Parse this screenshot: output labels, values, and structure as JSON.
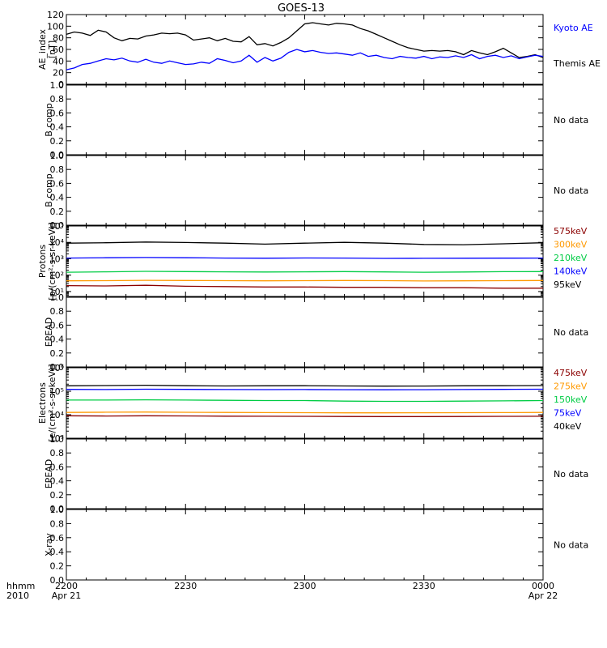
{
  "title": "GOES-13",
  "time_axis": {
    "row_label_1": "hhmm",
    "row_label_2": "2010",
    "ticks": [
      {
        "t": 0,
        "label": "2200",
        "date": "Apr 21"
      },
      {
        "t": 30,
        "label": "2230",
        "date": ""
      },
      {
        "t": 60,
        "label": "2300",
        "date": ""
      },
      {
        "t": 90,
        "label": "2330",
        "date": ""
      },
      {
        "t": 120,
        "label": "0000",
        "date": "Apr 22"
      }
    ]
  },
  "no_data_text": "No data",
  "chart_data": [
    {
      "type": "line",
      "ylabel": [
        "AE_index",
        "[nT]"
      ],
      "ylim": [
        0,
        120
      ],
      "yticks": [
        "0",
        "20",
        "40",
        "60",
        "80",
        "100",
        "120"
      ],
      "legend": [
        {
          "text": "Kyoto AE",
          "color": "#0000ff"
        },
        {
          "text": "Themis AE",
          "color": "#000000"
        }
      ],
      "series": [
        {
          "name": "Themis AE",
          "color": "#000000",
          "x": [
            0,
            2,
            4,
            6,
            8,
            10,
            12,
            14,
            16,
            18,
            20,
            22,
            24,
            26,
            28,
            30,
            32,
            34,
            36,
            38,
            40,
            42,
            44,
            46,
            48,
            50,
            52,
            54,
            56,
            58,
            60,
            62,
            64,
            66,
            68,
            70,
            72,
            74,
            76,
            78,
            80,
            82,
            84,
            86,
            88,
            90,
            92,
            94,
            96,
            98,
            100,
            102,
            104,
            106,
            108,
            110,
            112,
            114,
            116,
            118,
            120
          ],
          "y": [
            86,
            90,
            88,
            84,
            93,
            90,
            80,
            75,
            79,
            78,
            83,
            85,
            88,
            87,
            88,
            85,
            76,
            78,
            80,
            75,
            79,
            74,
            73,
            82,
            68,
            70,
            66,
            72,
            80,
            92,
            104,
            106,
            104,
            102,
            105,
            104,
            102,
            96,
            92,
            86,
            80,
            74,
            68,
            63,
            60,
            57,
            58,
            57,
            58,
            56,
            51,
            58,
            54,
            51,
            56,
            62,
            54,
            46,
            48,
            51,
            46
          ]
        },
        {
          "name": "Kyoto AE",
          "color": "#0000ff",
          "x": [
            0,
            2,
            4,
            6,
            8,
            10,
            12,
            14,
            16,
            18,
            20,
            22,
            24,
            26,
            28,
            30,
            32,
            34,
            36,
            38,
            40,
            42,
            44,
            46,
            48,
            50,
            52,
            54,
            56,
            58,
            60,
            62,
            64,
            66,
            68,
            70,
            72,
            74,
            76,
            78,
            80,
            82,
            84,
            86,
            88,
            90,
            92,
            94,
            96,
            98,
            100,
            102,
            104,
            106,
            108,
            110,
            112,
            114,
            116,
            118,
            120
          ],
          "y": [
            25,
            28,
            34,
            36,
            40,
            44,
            42,
            45,
            40,
            38,
            43,
            38,
            36,
            40,
            37,
            34,
            35,
            38,
            36,
            44,
            41,
            37,
            40,
            50,
            38,
            46,
            40,
            45,
            55,
            60,
            56,
            58,
            55,
            53,
            54,
            52,
            50,
            54,
            48,
            50,
            46,
            44,
            48,
            46,
            45,
            48,
            44,
            47,
            46,
            49,
            46,
            51,
            44,
            48,
            50,
            46,
            49,
            44,
            47,
            50,
            48
          ]
        }
      ]
    },
    {
      "type": "line",
      "ylabel": [
        "B comp"
      ],
      "ylim": [
        0,
        1
      ],
      "yticks": [
        "0.0",
        "0.2",
        "0.4",
        "0.6",
        "0.8",
        "1.0"
      ],
      "no_data": true,
      "series": []
    },
    {
      "type": "line",
      "ylabel": [
        "B comp"
      ],
      "ylim": [
        0,
        1
      ],
      "yticks": [
        "0.0",
        "0.2",
        "0.4",
        "0.6",
        "0.8",
        "1.0"
      ],
      "no_data": true,
      "series": []
    },
    {
      "type": "line",
      "log": true,
      "ylabel": [
        "Protons",
        "[p/(cm²-s-sr-keV)]"
      ],
      "ylim": [
        5,
        100000
      ],
      "yticks": [
        "10¹",
        "10²",
        "10³",
        "10⁴",
        "10⁵"
      ],
      "legend": [
        {
          "text": "575keV",
          "color": "#8b0000"
        },
        {
          "text": "300keV",
          "color": "#ff9900"
        },
        {
          "text": "210keV",
          "color": "#00cc44"
        },
        {
          "text": "140keV",
          "color": "#0000ff"
        },
        {
          "text": "95keV",
          "color": "#000000"
        }
      ],
      "series": [
        {
          "name": "95keV",
          "color": "#000000",
          "x": [
            0,
            10,
            20,
            30,
            40,
            50,
            60,
            70,
            80,
            90,
            100,
            110,
            120
          ],
          "y": [
            9000,
            9500,
            10500,
            9800,
            9000,
            7800,
            9000,
            10000,
            9000,
            7500,
            7200,
            8200,
            9500
          ]
        },
        {
          "name": "140keV",
          "color": "#0000ff",
          "x": [
            0,
            10,
            20,
            30,
            40,
            50,
            60,
            70,
            80,
            90,
            100,
            110,
            120
          ],
          "y": [
            1100,
            1150,
            1200,
            1150,
            1100,
            1080,
            1120,
            1100,
            1050,
            1060,
            1080,
            1090,
            1100
          ]
        },
        {
          "name": "210keV",
          "color": "#00cc44",
          "x": [
            0,
            10,
            20,
            30,
            40,
            50,
            60,
            70,
            80,
            90,
            100,
            110,
            120
          ],
          "y": [
            150,
            160,
            170,
            165,
            160,
            155,
            160,
            165,
            158,
            150,
            155,
            162,
            165
          ]
        },
        {
          "name": "300keV",
          "color": "#ff9900",
          "x": [
            0,
            10,
            20,
            30,
            40,
            50,
            60,
            70,
            80,
            90,
            100,
            110,
            120
          ],
          "y": [
            45,
            46,
            48,
            47,
            46,
            45,
            46,
            47,
            46,
            44,
            45,
            46,
            47
          ]
        },
        {
          "name": "575keV",
          "color": "#8b0000",
          "x": [
            0,
            10,
            20,
            30,
            40,
            50,
            60,
            70,
            80,
            90,
            100,
            110,
            120
          ],
          "y": [
            23,
            22,
            24,
            21,
            20,
            19,
            19,
            18,
            18,
            17,
            17,
            16,
            16
          ]
        }
      ]
    },
    {
      "type": "line",
      "ylabel": [
        "EPEAD"
      ],
      "ylim": [
        0,
        1
      ],
      "yticks": [
        "0.0",
        "0.2",
        "0.4",
        "0.6",
        "0.8",
        "1.0"
      ],
      "no_data": true,
      "series": []
    },
    {
      "type": "line",
      "log": true,
      "ylabel": [
        "Electrons",
        "[e/(cm²-s-sr-keV)]"
      ],
      "ylim": [
        1000,
        1000000
      ],
      "yticks": [
        "10³",
        "10⁴",
        "10⁵",
        "10⁶"
      ],
      "legend": [
        {
          "text": "475keV",
          "color": "#8b0000"
        },
        {
          "text": "275keV",
          "color": "#ff9900"
        },
        {
          "text": "150keV",
          "color": "#00cc44"
        },
        {
          "text": "75keV",
          "color": "#0000ff"
        },
        {
          "text": "40keV",
          "color": "#000000"
        }
      ],
      "series": [
        {
          "name": "40keV",
          "color": "#000000",
          "x": [
            0,
            10,
            20,
            30,
            40,
            50,
            60,
            70,
            80,
            90,
            100,
            110,
            120
          ],
          "y": [
            170000,
            175000,
            180000,
            172000,
            168000,
            170000,
            172000,
            168000,
            165000,
            166000,
            170000,
            172000,
            175000
          ]
        },
        {
          "name": "75keV",
          "color": "#0000ff",
          "x": [
            0,
            10,
            20,
            30,
            40,
            50,
            60,
            70,
            80,
            90,
            100,
            110,
            120
          ],
          "y": [
            120000,
            118000,
            122000,
            120000,
            118000,
            117000,
            118000,
            116000,
            115000,
            116000,
            118000,
            120000,
            122000
          ]
        },
        {
          "name": "150keV",
          "color": "#00cc44",
          "x": [
            0,
            10,
            20,
            30,
            40,
            50,
            60,
            70,
            80,
            90,
            100,
            110,
            120
          ],
          "y": [
            42000,
            42000,
            43000,
            42000,
            41000,
            40000,
            40000,
            38000,
            37000,
            37000,
            38000,
            39000,
            40000
          ]
        },
        {
          "name": "275keV",
          "color": "#ff9900",
          "x": [
            0,
            10,
            20,
            30,
            40,
            50,
            60,
            70,
            80,
            90,
            100,
            110,
            120
          ],
          "y": [
            12500,
            12800,
            13000,
            12700,
            12500,
            12300,
            12200,
            12000,
            12000,
            12100,
            12200,
            12300,
            12500
          ]
        },
        {
          "name": "475keV",
          "color": "#8b0000",
          "x": [
            0,
            10,
            20,
            30,
            40,
            50,
            60,
            70,
            80,
            90,
            100,
            110,
            120
          ],
          "y": [
            9000,
            8800,
            9000,
            8900,
            8700,
            8600,
            8500,
            8400,
            8300,
            8300,
            8400,
            8500,
            8600
          ]
        }
      ]
    },
    {
      "type": "line",
      "ylabel": [
        "EPEAD"
      ],
      "ylim": [
        0,
        1
      ],
      "yticks": [
        "0.0",
        "0.2",
        "0.4",
        "0.6",
        "0.8",
        "1.0"
      ],
      "no_data": true,
      "series": []
    },
    {
      "type": "line",
      "ylabel": [
        "X-ray"
      ],
      "ylim": [
        0,
        1
      ],
      "yticks": [
        "0.0",
        "0.2",
        "0.4",
        "0.6",
        "0.8",
        "1.0"
      ],
      "no_data": true,
      "series": []
    }
  ]
}
